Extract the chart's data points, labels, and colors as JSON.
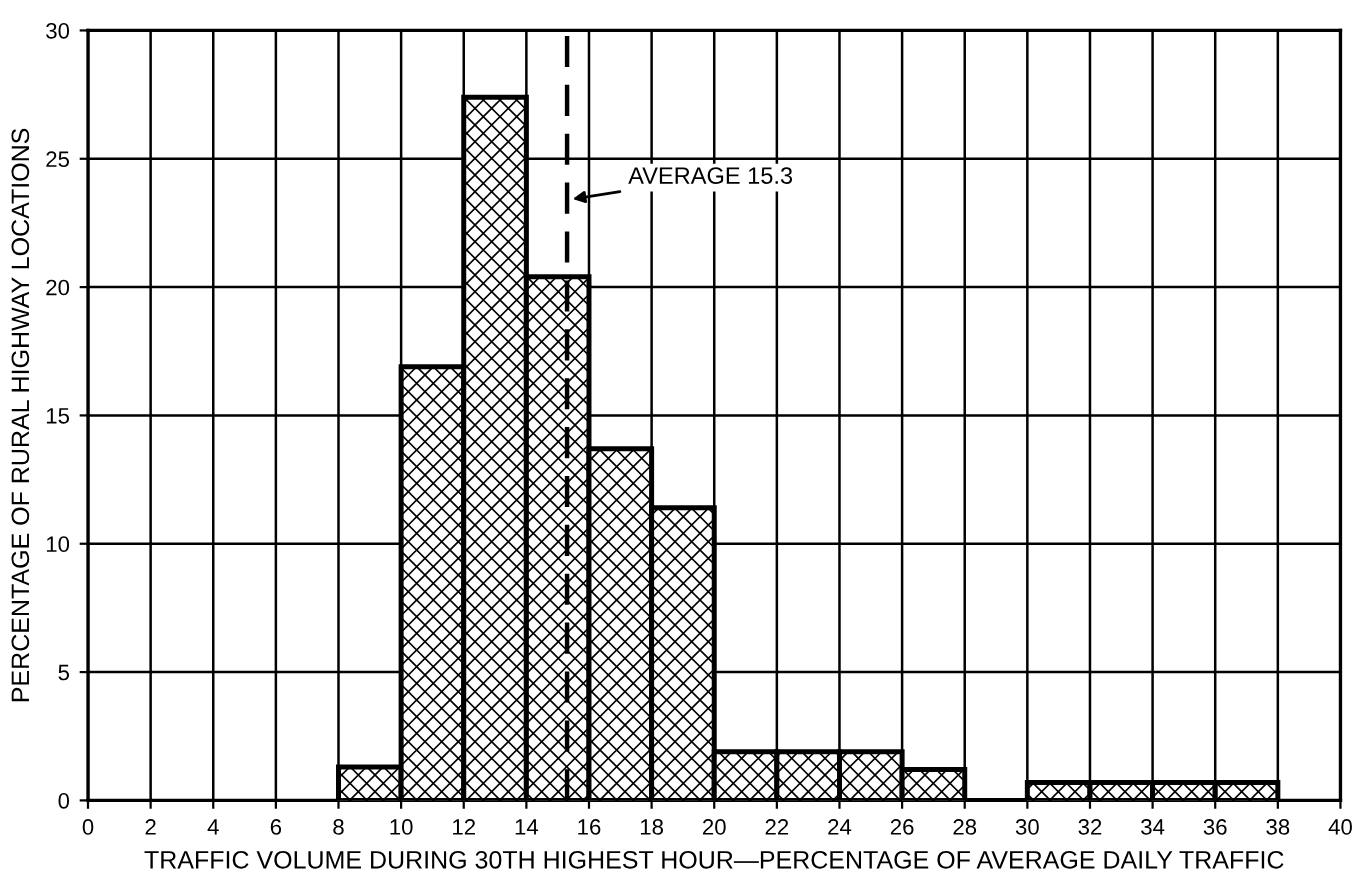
{
  "chart_data": {
    "type": "histogram",
    "xlabel": "TRAFFIC VOLUME DURING 30TH HIGHEST HOUR—PERCENTAGE OF AVERAGE DAILY TRAFFIC",
    "ylabel": "PERCENTAGE OF RURAL HIGHWAY LOCATIONS",
    "bins": [
      8,
      10,
      12,
      14,
      16,
      18,
      20,
      22,
      24,
      26,
      28,
      30,
      32,
      34,
      36,
      38
    ],
    "values": [
      1.3,
      16.9,
      27.4,
      20.4,
      13.7,
      11.4,
      1.9,
      1.9,
      1.9,
      1.2,
      0,
      0.7,
      0.7,
      0.7,
      0.7
    ],
    "color": "#000000",
    "xlim": [
      0,
      40
    ],
    "xticks": [
      0,
      2,
      4,
      6,
      8,
      10,
      12,
      14,
      16,
      18,
      20,
      22,
      24,
      26,
      28,
      30,
      32,
      34,
      36,
      38,
      40
    ],
    "ylim": [
      0,
      30
    ],
    "yticks": [
      0,
      5,
      10,
      15,
      20,
      25,
      30
    ],
    "grid": true,
    "ref_lines": [
      {
        "axis": "x",
        "value": 15.3,
        "label": "AVERAGE 15.3",
        "line_style": "dashed",
        "color": "#000000"
      }
    ]
  }
}
